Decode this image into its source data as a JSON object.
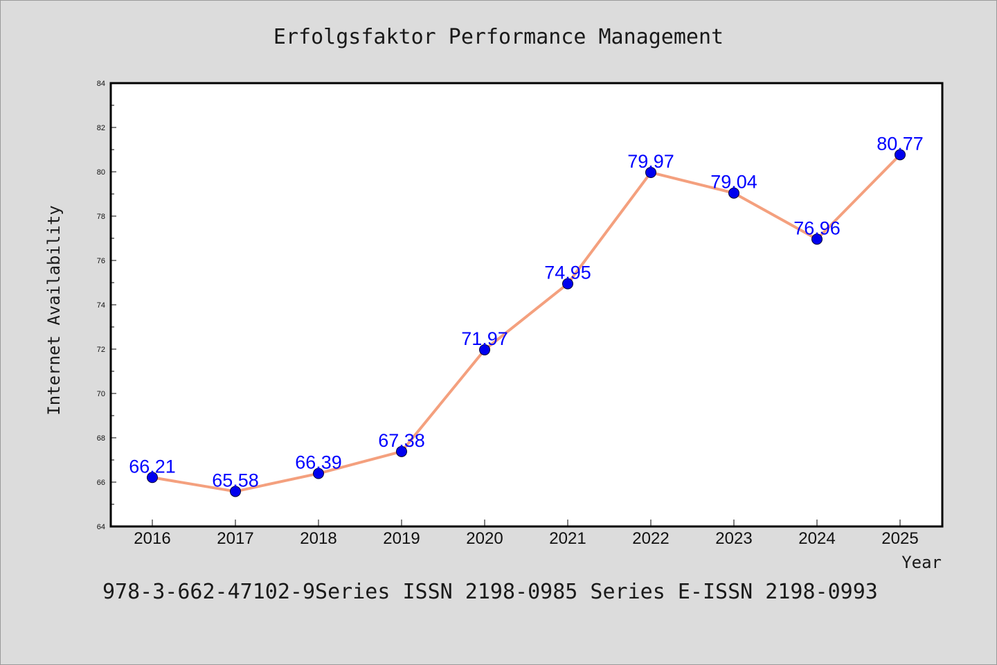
{
  "chart_data": {
    "type": "line",
    "title": "Erfolgsfaktor Performance Management",
    "xlabel": "Year",
    "ylabel": "Internet Availability",
    "categories": [
      "2016",
      "2017",
      "2018",
      "2019",
      "2020",
      "2021",
      "2022",
      "2023",
      "2024",
      "2025"
    ],
    "series": [
      {
        "values": [
          66.21,
          65.58,
          66.39,
          67.38,
          71.97,
          74.95,
          79.97,
          79.04,
          76.96,
          80.77
        ],
        "data_labels": [
          "66.21",
          "65.58",
          "66.39",
          "67.38",
          "71.97",
          "74.95",
          "79.97",
          "79.04",
          "76.96",
          "80.77"
        ]
      }
    ],
    "ylim": [
      64,
      84
    ],
    "yticks": [
      64,
      66,
      68,
      70,
      72,
      74,
      76,
      78,
      80,
      82,
      84
    ],
    "grid": false,
    "line_color": "#f4a07e",
    "marker_color": "#0000ee",
    "label_color": "#0000ff"
  },
  "footer_text": "978-3-662-47102-9Series ISSN 2198-0985 Series E-ISSN 2198-0993"
}
